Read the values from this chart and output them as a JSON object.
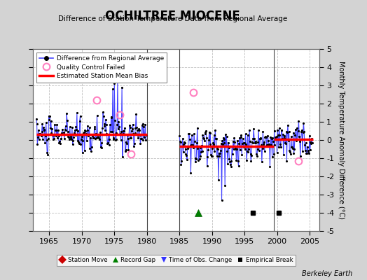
{
  "title": "OCHILTREE MIOCENE",
  "subtitle": "Difference of Station Temperature Data from Regional Average",
  "ylabel_right": "Monthly Temperature Anomaly Difference (°C)",
  "ylim": [
    -5,
    5
  ],
  "xlim": [
    1962.5,
    2006.5
  ],
  "xticks": [
    1965,
    1970,
    1975,
    1980,
    1985,
    1990,
    1995,
    2000,
    2005
  ],
  "yticks": [
    -5,
    -4,
    -3,
    -2,
    -1,
    0,
    1,
    2,
    3,
    4,
    5
  ],
  "background_color": "#d3d3d3",
  "plot_background": "#ffffff",
  "grid_color": "#c0c0c0",
  "line_color": "#4444ff",
  "dot_color": "#000000",
  "bias_color": "#ff0000",
  "qc_color": "#ff80c0",
  "watermark": "Berkeley Earth",
  "segment1_bias": 0.3,
  "segment2_bias": -0.35,
  "segment3_bias": 0.05,
  "segment1_start": 1963.0,
  "segment1_end": 1980.0,
  "segment2_start": 1985.0,
  "segment2_end": 1999.5,
  "segment3_start": 1999.5,
  "segment3_end": 2005.5,
  "record_gap_x": 1987.9,
  "record_gap_y": -4.0,
  "empirical_break_x1": 1996.3,
  "empirical_break_y1": -4.0,
  "empirical_break_x2": 2000.3,
  "empirical_break_y2": -4.0,
  "qc_failed_points": [
    [
      1972.3,
      2.2
    ],
    [
      1975.8,
      1.4
    ],
    [
      1977.6,
      -0.75
    ],
    [
      1987.1,
      2.6
    ],
    [
      2003.3,
      -1.15
    ]
  ],
  "seg1_seed": 10,
  "seg2_seed": 20,
  "seg3_seed": 30
}
